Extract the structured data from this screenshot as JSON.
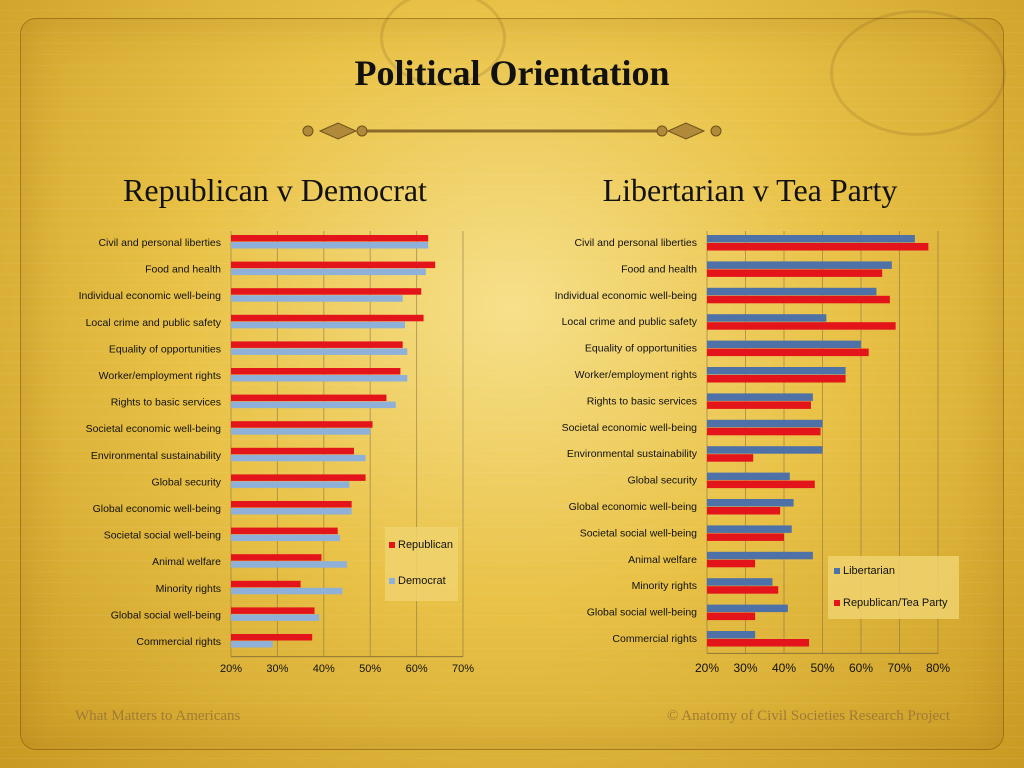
{
  "title": "Political Orientation",
  "footer": {
    "left": "What Matters to Americans",
    "right": "© Anatomy of Civil Societies Research Project"
  },
  "colors": {
    "red": "#e4141b",
    "lightblue": "#8fb0d8",
    "steelblue": "#4e71a8"
  },
  "chart_data": [
    {
      "type": "bar",
      "orientation": "horizontal",
      "title": "Republican v Democrat",
      "categories": [
        "Civil and personal liberties",
        "Food and health",
        "Individual economic well-being",
        "Local crime and public safety",
        "Equality of opportunities",
        "Worker/employment rights",
        "Rights to basic services",
        "Societal economic well-being",
        "Environmental sustainability",
        "Global security",
        "Global economic well-being",
        "Societal social well-being",
        "Animal welfare",
        "Minority rights",
        "Global social well-being",
        "Commercial rights"
      ],
      "series": [
        {
          "name": "Republican",
          "color": "#e4141b",
          "values": [
            62.5,
            64,
            61,
            61.5,
            57,
            56.5,
            53.5,
            50.5,
            46.5,
            49,
            46,
            43,
            39.5,
            35,
            38,
            37.5
          ]
        },
        {
          "name": "Democrat",
          "color": "#8fb0d8",
          "values": [
            62.5,
            62,
            57,
            57.5,
            58,
            58,
            55.5,
            50,
            49,
            45.5,
            46,
            43.5,
            45,
            44,
            39,
            29
          ]
        }
      ],
      "xlim": [
        20,
        70
      ],
      "ticks": [
        "20%",
        "30%",
        "40%",
        "50%",
        "60%",
        "70%"
      ],
      "legend": "right"
    },
    {
      "type": "bar",
      "orientation": "horizontal",
      "title": "Libertarian v Tea Party",
      "categories": [
        "Civil and personal liberties",
        "Food and health",
        "Individual economic well-being",
        "Local crime and public safety",
        "Equality of opportunities",
        "Worker/employment rights",
        "Rights to basic services",
        "Societal economic well-being",
        "Environmental sustainability",
        "Global security",
        "Global economic well-being",
        "Societal social well-being",
        "Animal welfare",
        "Minority rights",
        "Global social well-being",
        "Commercial rights"
      ],
      "series": [
        {
          "name": "Libertarian",
          "color": "#4e71a8",
          "values": [
            74,
            68,
            64,
            51,
            60,
            56,
            47.5,
            50,
            50,
            41.5,
            42.5,
            42,
            47.5,
            37,
            41,
            32.5
          ]
        },
        {
          "name": "Republican/Tea Party",
          "color": "#e4141b",
          "values": [
            77.5,
            65.5,
            67.5,
            69,
            62,
            56,
            47,
            49.5,
            32,
            48,
            39,
            40,
            32.5,
            38.5,
            32.5,
            46.5
          ]
        }
      ],
      "xlim": [
        20,
        80
      ],
      "ticks": [
        "20%",
        "30%",
        "40%",
        "50%",
        "60%",
        "70%",
        "80%"
      ],
      "legend": "right"
    }
  ]
}
